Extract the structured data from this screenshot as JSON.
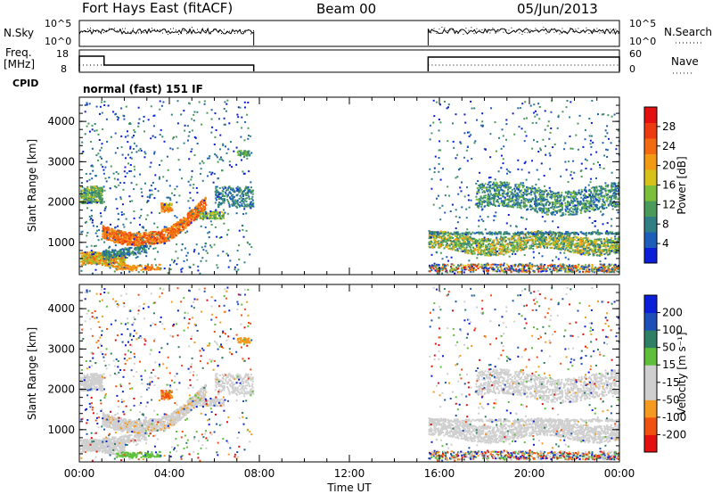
{
  "header": {
    "title": "Fort Hays East (fitACF)",
    "beam": "Beam 00",
    "date": "05/Jun/2013"
  },
  "top_panels": {
    "nsky_label": "N.Sky",
    "nsearch_label": "N.Search",
    "nsky_ticks": [
      "10^5",
      "10^0"
    ],
    "nsearch_ticks": [
      "10^5",
      "10^0"
    ],
    "freq_label": "Freq.",
    "freq_unit": "[MHz]",
    "freq_ticks": [
      "18",
      "8"
    ],
    "nave_label": "Nave",
    "nave_ticks": [
      "60",
      "0"
    ],
    "cpid_label": "CPID",
    "cpid_text": "normal (fast) 151 IF"
  },
  "colors": {
    "power": [
      "#0b1fd8",
      "#1d5fb8",
      "#2f7f84",
      "#4a9a5a",
      "#7cbf3a",
      "#d6c21a",
      "#f39a14",
      "#f26a12",
      "#ee3a10",
      "#e41010"
    ],
    "velocity": [
      "#e41010",
      "#f05010",
      "#f59a20",
      "#cfcfcf",
      "#cfcfcf",
      "#5fbf3a",
      "#2f7f64",
      "#1d4fb8",
      "#0b1fd8"
    ]
  },
  "chart_data": [
    {
      "type": "heatmap",
      "name": "power",
      "ylabel": "Slant Range [km]",
      "yticks": [
        1000,
        2000,
        3000,
        4000
      ],
      "ylim": [
        200,
        4600
      ],
      "xlim": [
        0,
        24
      ],
      "colorbar": {
        "label": "Power [dB]",
        "ticks": [
          "4",
          "8",
          "12",
          "16",
          "20",
          "24",
          "28"
        ],
        "range": [
          0,
          32
        ]
      },
      "data_windows_ut": [
        [
          0,
          7.75
        ],
        [
          15.5,
          24
        ]
      ],
      "features": [
        {
          "t": [
            0,
            2.0
          ],
          "range": [
            450,
            750
          ],
          "level": "medium-high"
        },
        {
          "t": [
            1.0,
            5.5
          ],
          "range": [
            1000,
            1700
          ],
          "level": "high"
        },
        {
          "t": [
            0,
            1.0
          ],
          "range": [
            2000,
            2400
          ],
          "level": "medium"
        },
        {
          "t": [
            15.5,
            24
          ],
          "range": [
            700,
            1300
          ],
          "level": "medium"
        },
        {
          "t": [
            17.5,
            24
          ],
          "range": [
            1800,
            2500
          ],
          "level": "medium"
        }
      ]
    },
    {
      "type": "heatmap",
      "name": "velocity",
      "xlabel": "Time UT",
      "ylabel": "Slant Range [km]",
      "xticks": [
        "00:00",
        "04:00",
        "08:00",
        "12:00",
        "16:00",
        "20:00",
        "00:00"
      ],
      "yticks": [
        1000,
        2000,
        3000,
        4000
      ],
      "ylim": [
        200,
        4600
      ],
      "xlim": [
        0,
        24
      ],
      "colorbar": {
        "label": "Velocity [m s⁻¹]",
        "ticks": [
          "-200",
          "-100",
          "-50",
          "-15",
          "15",
          "50",
          "100",
          "200"
        ],
        "range": [
          -250,
          250
        ]
      },
      "data_windows_ut": [
        [
          0,
          7.75
        ],
        [
          15.5,
          24
        ]
      ]
    }
  ]
}
